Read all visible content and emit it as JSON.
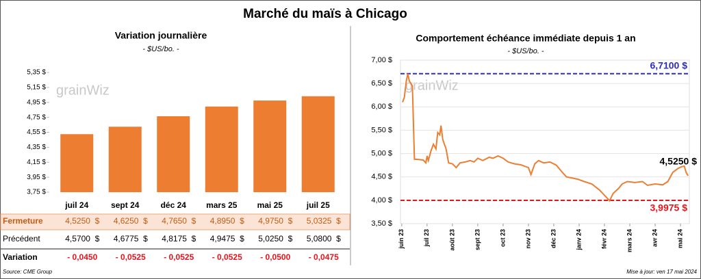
{
  "title": "Marché du maïs à Chicago",
  "watermark": "grainWiz",
  "chart_data": [
    {
      "type": "bar",
      "title": "Variation journalière",
      "subtitle": "- $US/bo. -",
      "categories": [
        "juil 24",
        "sept 24",
        "déc 24",
        "mars 25",
        "mai 25",
        "juil 25"
      ],
      "values": [
        4.525,
        4.625,
        4.765,
        4.895,
        4.975,
        5.0325
      ],
      "color": "#ed7d31",
      "ylim": [
        3.75,
        5.35
      ],
      "yticks": [
        {
          "value": 3.75,
          "label": "3,75 $"
        },
        {
          "value": 3.95,
          "label": "3,95 $"
        },
        {
          "value": 4.15,
          "label": "4,15 $"
        },
        {
          "value": 4.35,
          "label": "4,35 $"
        },
        {
          "value": 4.55,
          "label": "4,55 $"
        },
        {
          "value": 4.75,
          "label": "4,75 $"
        },
        {
          "value": 4.95,
          "label": "4,95 $"
        },
        {
          "value": 5.15,
          "label": "5,15 $"
        },
        {
          "value": 5.35,
          "label": "5,35 $"
        }
      ]
    },
    {
      "type": "line",
      "title": "Comportement  échéance immédiate depuis 1 an",
      "subtitle": "- $US/bo. -",
      "x": [
        0.03,
        0.1,
        0.18,
        0.24,
        0.3,
        0.42,
        0.5,
        0.7,
        0.85,
        0.95,
        1.0,
        1.05,
        1.15,
        1.25,
        1.35,
        1.42,
        1.5,
        1.55,
        1.62,
        1.75,
        1.85,
        2.0,
        2.15,
        2.3,
        2.5,
        2.7,
        2.85,
        3.0,
        3.2,
        3.45,
        3.6,
        3.8,
        4.0,
        4.2,
        4.45,
        4.7,
        5.0,
        5.1,
        5.25,
        5.4,
        5.6,
        5.85,
        6.1,
        6.3,
        6.5,
        6.7,
        6.95,
        7.2,
        7.5,
        7.8,
        8.05,
        8.2,
        8.35,
        8.55,
        8.7,
        8.9,
        9.2,
        9.5,
        9.7,
        10.0,
        10.3,
        10.5,
        10.7,
        10.9,
        11.05,
        11.15,
        11.22,
        11.3
      ],
      "values": [
        6.1,
        6.2,
        6.55,
        6.71,
        6.55,
        6.45,
        4.88,
        4.87,
        4.86,
        4.8,
        4.95,
        4.85,
        5.05,
        5.2,
        5.1,
        5.45,
        5.4,
        5.6,
        5.3,
        5.1,
        4.8,
        4.78,
        4.7,
        4.8,
        4.82,
        4.85,
        4.82,
        4.9,
        4.85,
        4.92,
        4.9,
        4.95,
        4.9,
        4.82,
        4.78,
        4.76,
        4.7,
        4.55,
        4.78,
        4.85,
        4.8,
        4.82,
        4.75,
        4.62,
        4.5,
        4.48,
        4.45,
        4.4,
        4.35,
        4.22,
        4.08,
        3.99,
        4.15,
        4.25,
        4.35,
        4.4,
        4.38,
        4.4,
        4.32,
        4.35,
        4.33,
        4.4,
        4.6,
        4.68,
        4.72,
        4.73,
        4.6,
        4.525
      ],
      "color": "#ed7d31",
      "xlim": [
        -0.05,
        11.35
      ],
      "xticks": [
        {
          "value": 0,
          "label": "juin 23"
        },
        {
          "value": 1,
          "label": "juil 23"
        },
        {
          "value": 2,
          "label": "août 23"
        },
        {
          "value": 3,
          "label": "sept 23"
        },
        {
          "value": 4,
          "label": "oct 23"
        },
        {
          "value": 5,
          "label": "nov 23"
        },
        {
          "value": 6,
          "label": "déc 23"
        },
        {
          "value": 7,
          "label": "janv 24"
        },
        {
          "value": 8,
          "label": "févr 24"
        },
        {
          "value": 9,
          "label": "mars 24"
        },
        {
          "value": 10,
          "label": "avr 24"
        },
        {
          "value": 11,
          "label": "mai 24"
        }
      ],
      "ylim": [
        3.5,
        7.0
      ],
      "yticks": [
        {
          "value": 3.5,
          "label": "3,50 $"
        },
        {
          "value": 4.0,
          "label": "4,00 $"
        },
        {
          "value": 4.5,
          "label": "4,50 $"
        },
        {
          "value": 5.0,
          "label": "5,00 $"
        },
        {
          "value": 5.5,
          "label": "5,50 $"
        },
        {
          "value": 6.0,
          "label": "6,00 $"
        },
        {
          "value": 6.5,
          "label": "6,50 $"
        },
        {
          "value": 7.0,
          "label": "7,00 $"
        }
      ],
      "grid": true,
      "reference_lines": [
        {
          "value": 6.71,
          "label": "6,7100 $",
          "color": "#2e2eb8"
        },
        {
          "value": 3.9975,
          "label": "3,9975 $",
          "color": "#e8141c"
        }
      ],
      "last_label": {
        "value": 4.525,
        "label": "4,5250 $"
      }
    }
  ],
  "table": {
    "rows": [
      {
        "label": "Fermeture",
        "cells": [
          "4,5250  $",
          "4,6250  $",
          "4,7650  $",
          "4,8950  $",
          "4,9750  $",
          "5,0325  $"
        ]
      },
      {
        "label": "Précédent",
        "cells": [
          "4,5700  $",
          "4,6775  $",
          "4,8175  $",
          "4,9475  $",
          "5,0250  $",
          "5,0800  $"
        ]
      },
      {
        "label": "Variation",
        "cells": [
          "- 0,0450",
          "- 0,0525",
          "- 0,0525",
          "- 0,0525",
          "- 0,0500",
          "- 0,0475"
        ]
      }
    ]
  },
  "source": "Source: CME Group",
  "updated": "Mise à jour: ven 17 mai 2024"
}
